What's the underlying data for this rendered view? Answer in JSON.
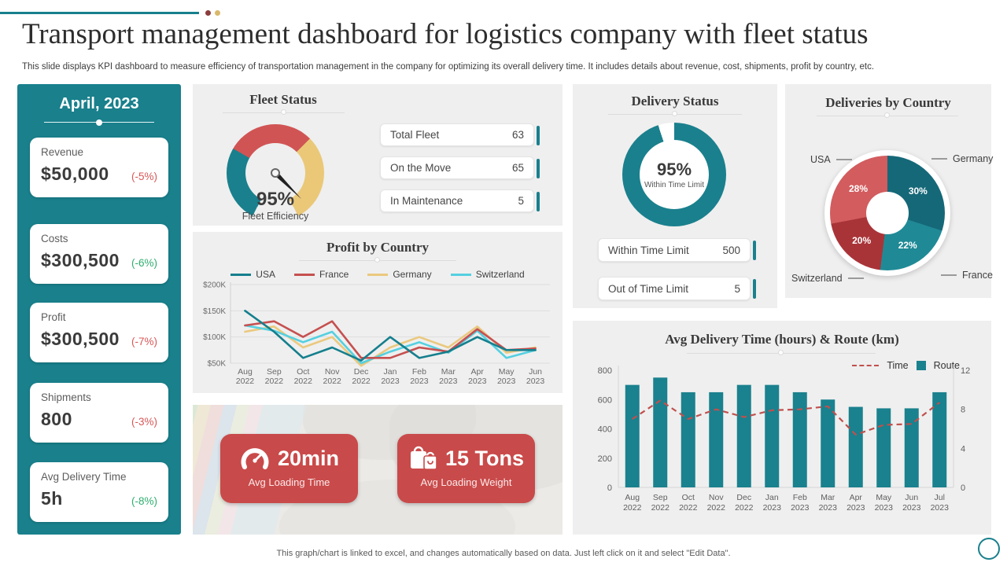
{
  "header": {
    "title": "Transport management dashboard for logistics company with fleet status",
    "subtitle": "This slide displays KPI dashboard to measure efficiency of transportation management in the company for optimizing its overall delivery time. It includes details about revenue, cost, shipments, profit by country, etc."
  },
  "theme": {
    "accent_teal": "#19808c",
    "panel_gray": "#efefef",
    "badge_red": "#c94a4a",
    "negative_red": "#d95757",
    "positive_green": "#2fae6e"
  },
  "sidebar": {
    "month": "April, 2023",
    "cards": [
      {
        "label": "Revenue",
        "value": "$50,000",
        "delta": "(-5%)",
        "delta_color": "#d95757"
      },
      {
        "label": "Costs",
        "value": "$300,500",
        "delta": "(-6%)",
        "delta_color": "#2fae6e"
      },
      {
        "label": "Profit",
        "value": "$300,500",
        "delta": "(-7%)",
        "delta_color": "#d95757"
      },
      {
        "label": "Shipments",
        "value": "800",
        "delta": "(-3%)",
        "delta_color": "#d95757"
      },
      {
        "label": "Avg Delivery Time",
        "value": "5h",
        "delta": "(-8%)",
        "delta_color": "#2fae6e"
      }
    ]
  },
  "fleet": {
    "title": "Fleet Status",
    "stats": [
      {
        "label": "Total Fleet",
        "value": "63"
      },
      {
        "label": "On the Move",
        "value": "65"
      },
      {
        "label": "In Maintenance",
        "value": "5"
      }
    ]
  },
  "delivery": {
    "title": "Delivery Status",
    "stats": [
      {
        "label": "Within Time Limit",
        "value": "500"
      },
      {
        "label": "Out of Time Limit",
        "value": "5"
      }
    ]
  },
  "countries": {
    "title": "Deliveries by Country"
  },
  "loading": {
    "badges": [
      {
        "icon": "speedometer-icon",
        "value": "20min",
        "label": "Avg Loading Time"
      },
      {
        "icon": "shopping-bags-icon",
        "value": "15 Tons",
        "label": "Avg Loading Weight"
      }
    ]
  },
  "footer": {
    "note": "This graph/chart is linked to excel, and changes automatically based on data. Just left click on it and select \"Edit Data\"."
  },
  "chart_data": [
    {
      "id": "profit_by_country",
      "type": "line",
      "title": "Profit by Country",
      "x": [
        "Aug 2022",
        "Sep 2022",
        "Oct 2022",
        "Nov 2022",
        "Dec 2022",
        "Jan 2023",
        "Feb 2023",
        "Mar 2023",
        "Apr 2023",
        "May 2023",
        "Jun 2023"
      ],
      "series": [
        {
          "name": "USA",
          "color": "#157f8d",
          "values": [
            150,
            110,
            60,
            80,
            55,
            100,
            60,
            72,
            100,
            75,
            75
          ]
        },
        {
          "name": "France",
          "color": "#c65050",
          "values": [
            122,
            130,
            100,
            130,
            60,
            60,
            80,
            72,
            115,
            75,
            78
          ]
        },
        {
          "name": "Germany",
          "color": "#eac97e",
          "values": [
            110,
            120,
            80,
            100,
            45,
            80,
            100,
            80,
            120,
            70,
            80
          ]
        },
        {
          "name": "Switzerland",
          "color": "#55d0e0",
          "values": [
            122,
            112,
            90,
            110,
            50,
            72,
            90,
            70,
            112,
            60,
            75
          ]
        }
      ],
      "ylim": [
        50,
        200
      ],
      "ytick_values": [
        50,
        100,
        150,
        200
      ],
      "ytick_labels": [
        "$50K",
        "$100K",
        "$150K",
        "$200K"
      ],
      "unit": "USD thousands",
      "legend_position": "top",
      "grid": true
    },
    {
      "id": "delivery_combo",
      "type": "bar",
      "title": "Avg Delivery Time (hours) & Route (km)",
      "x": [
        "Aug 2022",
        "Sep 2022",
        "Oct 2022",
        "Nov 2022",
        "Dec 2022",
        "Jan 2023",
        "Feb 2023",
        "Mar 2023",
        "Apr 2023",
        "May 2023",
        "Jun 2023",
        "Jul 2023"
      ],
      "series": [
        {
          "name": "Route",
          "type": "bar",
          "axis": "left",
          "color": "#1a818e",
          "values": [
            700,
            750,
            650,
            650,
            700,
            700,
            650,
            600,
            550,
            540,
            540,
            650
          ]
        },
        {
          "name": "Time",
          "type": "line",
          "dashed": true,
          "axis": "right",
          "color": "#c0504d",
          "values": [
            7,
            8.9,
            7,
            8,
            7.2,
            7.9,
            8,
            8.3,
            5.4,
            6.4,
            6.5,
            8.7
          ]
        }
      ],
      "left_ylim": [
        0,
        800
      ],
      "left_ticks": [
        0,
        200,
        400,
        600,
        800
      ],
      "right_ylim": [
        0,
        12
      ],
      "right_ticks": [
        0,
        4,
        8,
        12
      ],
      "legend_position": "top-right",
      "grid": false
    },
    {
      "id": "fleet_gauge",
      "type": "gauge",
      "label": "95%",
      "caption": "Fleet Efficiency",
      "value_pct": 95,
      "needle_deg": 45,
      "stops": [
        [
          "#d15454",
          0,
          45
        ],
        [
          "#eac878",
          45,
          152
        ],
        [
          "#efefef",
          152,
          208
        ],
        [
          "#1a808d",
          208,
          300
        ],
        [
          "#d15454",
          300,
          360
        ]
      ]
    },
    {
      "id": "delivery_donut",
      "type": "donut",
      "label": "95%",
      "caption": "Within Time Limit",
      "value_pct": 95,
      "color": "#1a808d",
      "gap_color": "#ffffff"
    },
    {
      "id": "deliveries_pie",
      "type": "pie",
      "slices": [
        {
          "label": "Germany",
          "pct": 30,
          "color": "#156878"
        },
        {
          "label": "France",
          "pct": 22,
          "color": "#1f8a96"
        },
        {
          "label": "Switzerland",
          "pct": 20,
          "color": "#a93438"
        },
        {
          "label": "USA",
          "pct": 28,
          "color": "#d25c5e"
        }
      ]
    }
  ]
}
